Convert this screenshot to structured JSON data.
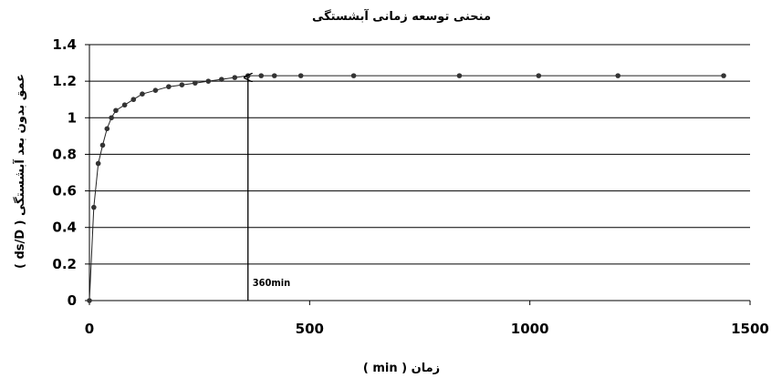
{
  "chart_data": {
    "type": "line",
    "title": "منحنی توسعه زمانی آبشستگی",
    "xlabel": "( min ) زمان",
    "ylabel": "( ds/D ) عمق بدون بعد آبشستگی",
    "xlim": [
      0,
      1500
    ],
    "ylim": [
      0,
      1.4
    ],
    "x_ticks": [
      "0",
      "500",
      "1000",
      "1500"
    ],
    "y_ticks": [
      "0",
      "0.2",
      "0.4",
      "0.6",
      "0.8",
      "1",
      "1.2",
      "1.4"
    ],
    "grid": "horizontal",
    "series": [
      {
        "x": [
          0,
          10,
          20,
          30,
          40,
          50,
          60,
          80,
          100,
          120,
          150,
          180,
          210,
          240,
          270,
          300,
          330,
          360,
          390,
          420,
          480,
          600,
          840,
          1020,
          1200,
          1440
        ],
        "y": [
          0,
          0.51,
          0.75,
          0.85,
          0.94,
          1.0,
          1.04,
          1.07,
          1.1,
          1.13,
          1.15,
          1.17,
          1.18,
          1.19,
          1.2,
          1.21,
          1.22,
          1.23,
          1.23,
          1.23,
          1.23,
          1.23,
          1.23,
          1.23,
          1.23,
          1.23
        ]
      }
    ],
    "annotations": [
      {
        "text": "360min",
        "x": 360,
        "y_from": 0,
        "y_to": 1.23
      }
    ]
  }
}
